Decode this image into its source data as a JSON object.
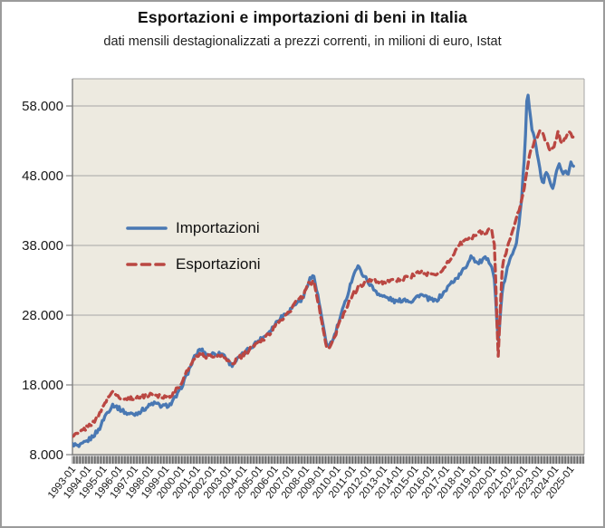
{
  "chart": {
    "title": "Esportazioni e importazioni di beni in Italia",
    "subtitle": "dati mensili destagionalizzati a prezzi correnti, in milioni di euro, Istat"
  },
  "legend": {
    "items": [
      {
        "label": "Importazioni"
      },
      {
        "label": "Esportazioni"
      }
    ]
  },
  "chart_data": {
    "type": "line",
    "title": "Esportazioni e importazioni di beni in Italia",
    "subtitle": "dati mensili destagionalizzati a prezzi correnti, in milioni di euro, Istat",
    "unit": "milioni di euro",
    "x_range": [
      1993.0,
      2025.85
    ],
    "ylim": [
      8000,
      61900
    ],
    "grid": "horizontal",
    "legend_position": "inside-left",
    "colors": {
      "plot_background": "#EDEAE0",
      "gridline": "#A6A6A6",
      "axis": "#7f7f7f",
      "tick": "#3d3d3d",
      "text": "#1a1a1a"
    },
    "y_ticks": [
      {
        "value": 8000,
        "label": "8.000"
      },
      {
        "value": 18000,
        "label": "18.000"
      },
      {
        "value": 28000,
        "label": "28.000"
      },
      {
        "value": 38000,
        "label": "38.000"
      },
      {
        "value": 48000,
        "label": "48.000"
      },
      {
        "value": 58000,
        "label": "58.000"
      }
    ],
    "x_tick_labels": [
      "1993-01",
      "1994-01",
      "1995-01",
      "1996-01",
      "1997-01",
      "1998-01",
      "1999-01",
      "2000-01",
      "2001-01",
      "2002-01",
      "2003-01",
      "2004-01",
      "2005-01",
      "2006-01",
      "2007-01",
      "2008-01",
      "2009-01",
      "2010-01",
      "2011-01",
      "2012-01",
      "2013-01",
      "2014-01",
      "2015-01",
      "2016-01",
      "2017-01",
      "2018-01",
      "2019-01",
      "2020-01",
      "2021-01",
      "2022-01",
      "2023-01",
      "2024-01",
      "2025-01"
    ],
    "series": [
      {
        "name": "Importazioni",
        "color": "#4978B3",
        "line_style": "solid",
        "points": [
          [
            1993.0,
            9600
          ],
          [
            1993.4,
            9100
          ],
          [
            1993.8,
            9700
          ],
          [
            1994.2,
            10400
          ],
          [
            1994.7,
            11600
          ],
          [
            1995.1,
            13600
          ],
          [
            1995.6,
            15200
          ],
          [
            1996.0,
            14600
          ],
          [
            1996.5,
            13900
          ],
          [
            1997.0,
            13800
          ],
          [
            1997.5,
            14400
          ],
          [
            1998.2,
            15400
          ],
          [
            1998.8,
            14900
          ],
          [
            1999.3,
            15200
          ],
          [
            1999.8,
            16800
          ],
          [
            2000.3,
            19200
          ],
          [
            2000.8,
            21800
          ],
          [
            2001.2,
            23200
          ],
          [
            2001.6,
            22300
          ],
          [
            2002.1,
            22500
          ],
          [
            2002.7,
            22400
          ],
          [
            2003.2,
            20800
          ],
          [
            2003.7,
            21900
          ],
          [
            2004.2,
            22900
          ],
          [
            2004.8,
            24100
          ],
          [
            2005.3,
            24900
          ],
          [
            2005.8,
            26100
          ],
          [
            2006.3,
            27600
          ],
          [
            2006.9,
            28600
          ],
          [
            2007.3,
            29600
          ],
          [
            2007.8,
            30400
          ],
          [
            2008.2,
            33200
          ],
          [
            2008.5,
            33600
          ],
          [
            2008.9,
            29000
          ],
          [
            2009.3,
            23600
          ],
          [
            2009.7,
            24200
          ],
          [
            2010.1,
            27000
          ],
          [
            2010.6,
            30500
          ],
          [
            2011.0,
            33600
          ],
          [
            2011.3,
            35000
          ],
          [
            2011.8,
            33400
          ],
          [
            2012.3,
            31800
          ],
          [
            2012.8,
            30800
          ],
          [
            2013.3,
            30400
          ],
          [
            2013.8,
            29900
          ],
          [
            2014.3,
            30300
          ],
          [
            2014.8,
            30000
          ],
          [
            2015.3,
            31000
          ],
          [
            2015.8,
            30400
          ],
          [
            2016.3,
            30000
          ],
          [
            2016.8,
            31100
          ],
          [
            2017.3,
            32600
          ],
          [
            2017.8,
            33600
          ],
          [
            2018.3,
            35100
          ],
          [
            2018.6,
            36600
          ],
          [
            2019.0,
            35400
          ],
          [
            2019.5,
            36100
          ],
          [
            2019.9,
            35400
          ],
          [
            2020.1,
            33000
          ],
          [
            2020.32,
            24000
          ],
          [
            2020.6,
            31500
          ],
          [
            2020.9,
            34600
          ],
          [
            2021.2,
            36600
          ],
          [
            2021.5,
            38600
          ],
          [
            2021.8,
            43500
          ],
          [
            2022.05,
            52000
          ],
          [
            2022.2,
            60800
          ],
          [
            2022.45,
            55200
          ],
          [
            2022.7,
            53000
          ],
          [
            2022.95,
            49500
          ],
          [
            2023.2,
            46600
          ],
          [
            2023.4,
            48400
          ],
          [
            2023.6,
            47400
          ],
          [
            2023.85,
            45800
          ],
          [
            2024.05,
            48200
          ],
          [
            2024.25,
            49900
          ],
          [
            2024.45,
            48300
          ],
          [
            2024.65,
            48600
          ],
          [
            2024.85,
            48200
          ],
          [
            2025.0,
            50200
          ],
          [
            2025.2,
            49200
          ]
        ]
      },
      {
        "name": "Esportazioni",
        "color": "#BA4742",
        "line_style": "dashed",
        "points": [
          [
            1993.0,
            10600
          ],
          [
            1993.4,
            11100
          ],
          [
            1993.8,
            11700
          ],
          [
            1994.2,
            12400
          ],
          [
            1994.7,
            13600
          ],
          [
            1995.1,
            15600
          ],
          [
            1995.5,
            16900
          ],
          [
            1996.0,
            16300
          ],
          [
            1996.5,
            15900
          ],
          [
            1997.0,
            16100
          ],
          [
            1997.5,
            16400
          ],
          [
            1998.2,
            16700
          ],
          [
            1998.8,
            16300
          ],
          [
            1999.3,
            16500
          ],
          [
            1999.8,
            17600
          ],
          [
            2000.3,
            19600
          ],
          [
            2000.8,
            21900
          ],
          [
            2001.2,
            22600
          ],
          [
            2001.6,
            22100
          ],
          [
            2002.1,
            22200
          ],
          [
            2002.7,
            22000
          ],
          [
            2003.2,
            21000
          ],
          [
            2003.7,
            21900
          ],
          [
            2004.2,
            22700
          ],
          [
            2004.8,
            24000
          ],
          [
            2005.3,
            24600
          ],
          [
            2005.8,
            25800
          ],
          [
            2006.3,
            27200
          ],
          [
            2006.9,
            28300
          ],
          [
            2007.3,
            29800
          ],
          [
            2007.8,
            30600
          ],
          [
            2008.2,
            32800
          ],
          [
            2008.5,
            32600
          ],
          [
            2008.9,
            28500
          ],
          [
            2009.3,
            23100
          ],
          [
            2009.7,
            24000
          ],
          [
            2010.1,
            26600
          ],
          [
            2010.6,
            29200
          ],
          [
            2011.0,
            31000
          ],
          [
            2011.4,
            32000
          ],
          [
            2011.8,
            32800
          ],
          [
            2012.3,
            33000
          ],
          [
            2012.8,
            32800
          ],
          [
            2013.3,
            32700
          ],
          [
            2013.8,
            33000
          ],
          [
            2014.3,
            33300
          ],
          [
            2014.8,
            33600
          ],
          [
            2015.3,
            34200
          ],
          [
            2015.8,
            33900
          ],
          [
            2016.3,
            33700
          ],
          [
            2016.8,
            34600
          ],
          [
            2017.3,
            36200
          ],
          [
            2017.8,
            38000
          ],
          [
            2018.3,
            38800
          ],
          [
            2018.7,
            39200
          ],
          [
            2019.1,
            40000
          ],
          [
            2019.5,
            39800
          ],
          [
            2019.9,
            40400
          ],
          [
            2020.1,
            38000
          ],
          [
            2020.32,
            21800
          ],
          [
            2020.6,
            35000
          ],
          [
            2020.9,
            37600
          ],
          [
            2021.2,
            40000
          ],
          [
            2021.5,
            41800
          ],
          [
            2021.8,
            44000
          ],
          [
            2022.1,
            47500
          ],
          [
            2022.35,
            51000
          ],
          [
            2022.6,
            52500
          ],
          [
            2022.85,
            53800
          ],
          [
            2023.1,
            54600
          ],
          [
            2023.35,
            53000
          ],
          [
            2023.6,
            52000
          ],
          [
            2023.8,
            51600
          ],
          [
            2024.0,
            53000
          ],
          [
            2024.2,
            54400
          ],
          [
            2024.4,
            52600
          ],
          [
            2024.6,
            53200
          ],
          [
            2024.8,
            54200
          ],
          [
            2025.0,
            53800
          ],
          [
            2025.2,
            53500
          ]
        ]
      }
    ]
  }
}
